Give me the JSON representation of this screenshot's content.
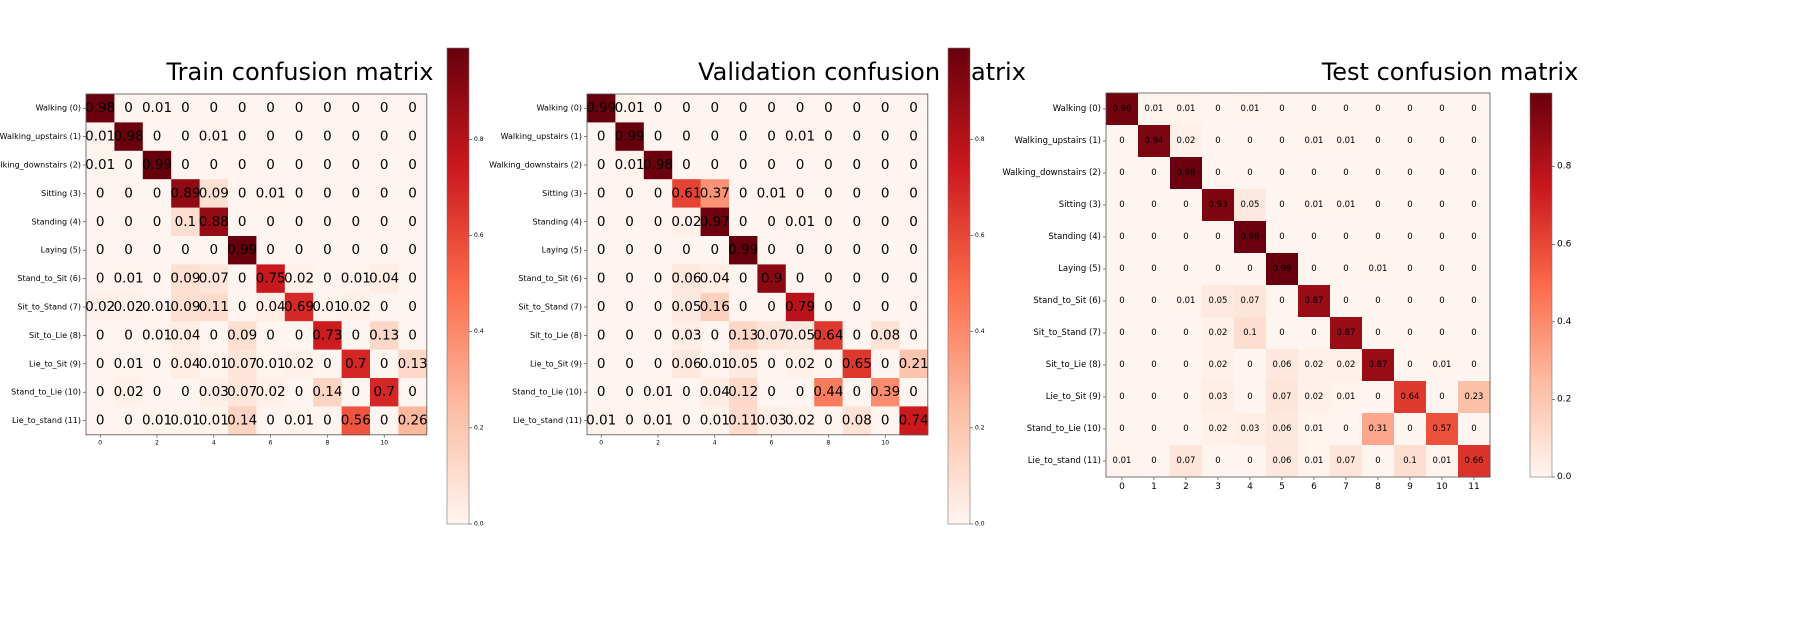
{
  "chart_data": [
    {
      "type": "heatmap",
      "title": "Train confusion matrix",
      "row_labels": [
        "Walking (0)",
        "Walking_upstairs (1)",
        "Walking_downstairs (2)",
        "Sitting (3)",
        "Standing (4)",
        "Laying (5)",
        "Stand_to_Sit (6)",
        "Sit_to_Stand (7)",
        "Sit_to_Lie (8)",
        "Lie_to_Sit (9)",
        "Stand_to_Lie (10)",
        "Lie_to_stand (11)"
      ],
      "x_ticks": [
        "0",
        "2",
        "4",
        "6",
        "8",
        "10"
      ],
      "colorbar_ticks": [
        "0.0",
        "0.2",
        "0.4",
        "0.6",
        "0.8"
      ],
      "colormap": [
        "#fff5f0",
        "#fcbba1",
        "#fb6a4a",
        "#cb181d",
        "#67000d"
      ],
      "values": [
        [
          0.98,
          0.0,
          0.01,
          0.0,
          0.0,
          0.0,
          0.0,
          0.0,
          0.0,
          0.0,
          0.0,
          0.0
        ],
        [
          0.01,
          0.98,
          0.0,
          0.0,
          0.01,
          0.0,
          0.0,
          0.0,
          0.0,
          0.0,
          0.0,
          0.0
        ],
        [
          0.01,
          0.0,
          0.99,
          0.0,
          0.0,
          0.0,
          0.0,
          0.0,
          0.0,
          0.0,
          0.0,
          0.0
        ],
        [
          0.0,
          0.0,
          0.0,
          0.89,
          0.09,
          0.0,
          0.01,
          0.0,
          0.0,
          0.0,
          0.0,
          0.0
        ],
        [
          0.0,
          0.0,
          0.0,
          0.1,
          0.88,
          0.0,
          0.0,
          0.0,
          0.0,
          0.0,
          0.0,
          0.0
        ],
        [
          0.0,
          0.0,
          0.0,
          0.0,
          0.0,
          0.99,
          0.0,
          0.0,
          0.0,
          0.0,
          0.0,
          0.0
        ],
        [
          0.0,
          0.01,
          0.0,
          0.09,
          0.07,
          0.0,
          0.75,
          0.02,
          0.0,
          0.01,
          0.04,
          0.0
        ],
        [
          0.02,
          0.02,
          0.01,
          0.09,
          0.11,
          0.0,
          0.04,
          0.69,
          0.01,
          0.02,
          0.0,
          0.0
        ],
        [
          0.0,
          0.0,
          0.01,
          0.04,
          0.0,
          0.09,
          0.0,
          0.0,
          0.73,
          0.0,
          0.13,
          0.0
        ],
        [
          0.0,
          0.01,
          0.0,
          0.04,
          0.01,
          0.07,
          0.01,
          0.02,
          0.0,
          0.7,
          0.0,
          0.13
        ],
        [
          0.0,
          0.02,
          0.0,
          0.0,
          0.03,
          0.07,
          0.02,
          0.0,
          0.14,
          0.0,
          0.7,
          0.0
        ],
        [
          0.0,
          0.0,
          0.01,
          0.01,
          0.01,
          0.14,
          0.0,
          0.01,
          0.0,
          0.56,
          0.0,
          0.26
        ]
      ]
    },
    {
      "type": "heatmap",
      "title": "Validation confusion matrix",
      "row_labels": [
        "Walking (0)",
        "Walking_upstairs (1)",
        "Walking_downstairs (2)",
        "Sitting (3)",
        "Standing (4)",
        "Laying (5)",
        "Stand_to_Sit (6)",
        "Sit_to_Stand (7)",
        "Sit_to_Lie (8)",
        "Lie_to_Sit (9)",
        "Stand_to_Lie (10)",
        "Lie_to_stand (11)"
      ],
      "x_ticks": [
        "0",
        "2",
        "4",
        "6",
        "8",
        "10"
      ],
      "colorbar_ticks": [
        "0.0",
        "0.2",
        "0.4",
        "0.6",
        "0.8"
      ],
      "colormap": [
        "#fff5f0",
        "#fcbba1",
        "#fb6a4a",
        "#cb181d",
        "#67000d"
      ],
      "values": [
        [
          0.99,
          0.01,
          0.0,
          0.0,
          0.0,
          0.0,
          0.0,
          0.0,
          0.0,
          0.0,
          0.0,
          0.0
        ],
        [
          0.0,
          0.99,
          0.0,
          0.0,
          0.0,
          0.0,
          0.0,
          0.01,
          0.0,
          0.0,
          0.0,
          0.0
        ],
        [
          0.0,
          0.01,
          0.98,
          0.0,
          0.0,
          0.0,
          0.0,
          0.0,
          0.0,
          0.0,
          0.0,
          0.0
        ],
        [
          0.0,
          0.0,
          0.0,
          0.61,
          0.37,
          0.0,
          0.01,
          0.0,
          0.0,
          0.0,
          0.0,
          0.0
        ],
        [
          0.0,
          0.0,
          0.0,
          0.02,
          0.97,
          0.0,
          0.0,
          0.01,
          0.0,
          0.0,
          0.0,
          0.0
        ],
        [
          0.0,
          0.0,
          0.0,
          0.0,
          0.0,
          0.99,
          0.0,
          0.0,
          0.0,
          0.0,
          0.0,
          0.0
        ],
        [
          0.0,
          0.0,
          0.0,
          0.06,
          0.04,
          0.0,
          0.9,
          0.0,
          0.0,
          0.0,
          0.0,
          0.0
        ],
        [
          0.0,
          0.0,
          0.0,
          0.05,
          0.16,
          0.0,
          0.0,
          0.79,
          0.0,
          0.0,
          0.0,
          0.0
        ],
        [
          0.0,
          0.0,
          0.0,
          0.03,
          0.0,
          0.13,
          0.07,
          0.05,
          0.64,
          0.0,
          0.08,
          0.0
        ],
        [
          0.0,
          0.0,
          0.0,
          0.06,
          0.01,
          0.05,
          0.0,
          0.02,
          0.0,
          0.65,
          0.0,
          0.21
        ],
        [
          0.0,
          0.0,
          0.01,
          0.0,
          0.04,
          0.12,
          0.0,
          0.0,
          0.44,
          0.0,
          0.39,
          0.0
        ],
        [
          0.01,
          0.0,
          0.01,
          0.0,
          0.01,
          0.11,
          0.03,
          0.02,
          0.0,
          0.08,
          0.0,
          0.74
        ]
      ]
    },
    {
      "type": "heatmap",
      "title": "Test confusion matrix",
      "row_labels": [
        "Walking (0)",
        "Walking_upstairs (1)",
        "Walking_downstairs (2)",
        "Sitting (3)",
        "Standing (4)",
        "Laying (5)",
        "Stand_to_Sit (6)",
        "Sit_to_Stand (7)",
        "Sit_to_Lie (8)",
        "Lie_to_Sit (9)",
        "Stand_to_Lie (10)",
        "Lie_to_stand (11)"
      ],
      "x_ticks": [
        "0",
        "1",
        "2",
        "3",
        "4",
        "5",
        "6",
        "7",
        "8",
        "9",
        "10",
        "11"
      ],
      "colorbar_ticks": [
        "0.0",
        "0.2",
        "0.4",
        "0.6",
        "0.8"
      ],
      "colormap": [
        "#fff5f0",
        "#fcbba1",
        "#fb6a4a",
        "#cb181d",
        "#67000d"
      ],
      "values": [
        [
          0.96,
          0.01,
          0.01,
          0.0,
          0.01,
          0.0,
          0.0,
          0.0,
          0.0,
          0.0,
          0.0,
          0.0
        ],
        [
          0.0,
          0.94,
          0.02,
          0.0,
          0.0,
          0.0,
          0.01,
          0.01,
          0.0,
          0.0,
          0.0,
          0.0
        ],
        [
          0.0,
          0.0,
          0.98,
          0.0,
          0.0,
          0.0,
          0.0,
          0.0,
          0.0,
          0.0,
          0.0,
          0.0
        ],
        [
          0.0,
          0.0,
          0.0,
          0.93,
          0.05,
          0.0,
          0.01,
          0.01,
          0.0,
          0.0,
          0.0,
          0.0
        ],
        [
          0.0,
          0.0,
          0.0,
          0.0,
          0.98,
          0.0,
          0.0,
          0.0,
          0.0,
          0.0,
          0.0,
          0.0
        ],
        [
          0.0,
          0.0,
          0.0,
          0.0,
          0.0,
          0.99,
          0.0,
          0.0,
          0.01,
          0.0,
          0.0,
          0.0
        ],
        [
          0.0,
          0.0,
          0.01,
          0.05,
          0.07,
          0.0,
          0.87,
          0.0,
          0.0,
          0.0,
          0.0,
          0.0
        ],
        [
          0.0,
          0.0,
          0.0,
          0.02,
          0.1,
          0.0,
          0.0,
          0.87,
          0.0,
          0.0,
          0.0,
          0.0
        ],
        [
          0.0,
          0.0,
          0.0,
          0.02,
          0.0,
          0.06,
          0.02,
          0.02,
          0.87,
          0.0,
          0.01,
          0.0
        ],
        [
          0.0,
          0.0,
          0.0,
          0.03,
          0.0,
          0.07,
          0.02,
          0.01,
          0.0,
          0.64,
          0.0,
          0.23
        ],
        [
          0.0,
          0.0,
          0.0,
          0.02,
          0.03,
          0.06,
          0.01,
          0.0,
          0.31,
          0.0,
          0.57,
          0.0
        ],
        [
          0.01,
          0.0,
          0.07,
          0.0,
          0.0,
          0.06,
          0.01,
          0.07,
          0.0,
          0.1,
          0.01,
          0.66
        ]
      ]
    }
  ]
}
